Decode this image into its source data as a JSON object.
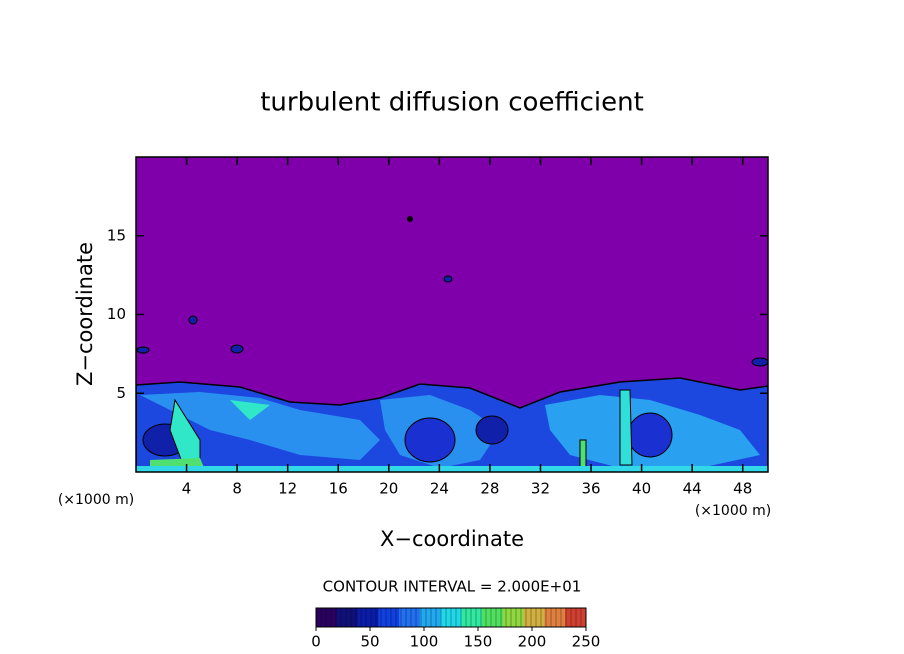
{
  "chart_data": {
    "type": "contour",
    "title": "turbulent diffusion coefficient",
    "x_label": "X−coordinate",
    "y_label": "Z−coordinate",
    "x_unit_label": "(×1000 m)",
    "y_unit_label": "(×1000 m)",
    "xlim": [
      0,
      50
    ],
    "xticks": [
      4,
      8,
      12,
      16,
      20,
      24,
      28,
      32,
      36,
      40,
      44,
      48
    ],
    "ylim": [
      0,
      20
    ],
    "yticks": [
      5,
      10,
      15
    ],
    "background_color": "#7f00aa",
    "contour_interval_label": "CONTOUR INTERVAL = 2.000E+01",
    "colorbar": {
      "lim": [
        0,
        250
      ],
      "ticks": [
        0,
        50,
        100,
        150,
        200,
        250
      ],
      "colors": [
        "#2a0060",
        "#10107a",
        "#0a1ca8",
        "#1040e0",
        "#2070f0",
        "#20a8f0",
        "#20d8e8",
        "#30e8a0",
        "#50e060",
        "#90d840",
        "#d0b040",
        "#e08040",
        "#d04030"
      ]
    }
  }
}
